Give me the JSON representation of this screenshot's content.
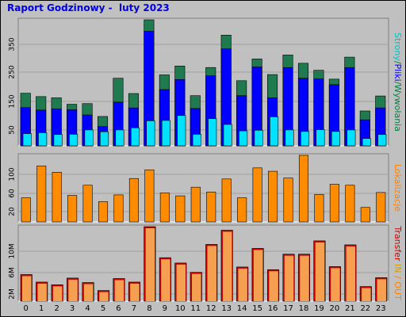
{
  "title": "Raport Godzinowy -  luty 2023",
  "colors": {
    "background": "#c0c0c0",
    "plot_background": "#c0c0c0",
    "hits": "#1f7a4f",
    "files": "#0000ff",
    "pages": "#00e0ff",
    "visits": "#ff8c00",
    "kbytes": "#f5a050",
    "kbytes_edge": "#cc0000",
    "text_hits": "#008040",
    "text_files": "#0000ff",
    "text_pages": "#00c0c0",
    "text_visits": "#ff8000",
    "text_kbytes": "#ff8000",
    "text_transfer": "#cc0000",
    "text_in": "#d4a000",
    "text_out": "#ff8000"
  },
  "chart_data": [
    {
      "type": "bar",
      "panel": "top",
      "categories": [
        "0",
        "1",
        "2",
        "3",
        "4",
        "5",
        "6",
        "7",
        "8",
        "9",
        "10",
        "11",
        "12",
        "13",
        "14",
        "15",
        "16",
        "17",
        "18",
        "19",
        "20",
        "21",
        "22",
        "23"
      ],
      "series": [
        {
          "name": "Strony",
          "values": [
            40,
            43,
            37,
            38,
            52,
            46,
            52,
            59,
            82,
            83,
            99,
            38,
            89,
            70,
            49,
            51,
            95,
            52,
            47,
            53,
            47,
            52,
            24,
            37
          ]
        },
        {
          "name": "Pliki",
          "values": [
            125,
            117,
            121,
            118,
            101,
            63,
            143,
            124,
            375,
            184,
            217,
            122,
            229,
            317,
            164,
            258,
            157,
            256,
            221,
            219,
            200,
            256,
            85,
            124
          ]
        },
        {
          "name": "Wywołania",
          "values": [
            172,
            161,
            157,
            136,
            138,
            96,
            221,
            171,
            412,
            232,
            261,
            164,
            256,
            362,
            213,
            284,
            233,
            297,
            270,
            247,
            218,
            290,
            114,
            163
          ]
        }
      ],
      "yticks": [
        "50",
        "150",
        "250",
        "350"
      ],
      "ylim": [
        0,
        412
      ],
      "side_label": [
        {
          "text": "Strony",
          "color_key": "text_pages"
        },
        {
          "text": "/",
          "color_key": "text_hits"
        },
        {
          "text": "Pliki",
          "color_key": "text_files"
        },
        {
          "text": "/",
          "color_key": "text_hits"
        },
        {
          "text": "Wywołania",
          "color_key": "text_hits"
        }
      ]
    },
    {
      "type": "bar",
      "panel": "middle",
      "categories": [
        "0",
        "1",
        "2",
        "3",
        "4",
        "5",
        "6",
        "7",
        "8",
        "9",
        "10",
        "11",
        "12",
        "13",
        "14",
        "15",
        "16",
        "17",
        "18",
        "19",
        "20",
        "21",
        "22",
        "23"
      ],
      "series": [
        {
          "name": "Lokalizacje",
          "values": [
            50,
            116,
            103,
            55,
            76,
            42,
            56,
            90,
            108,
            60,
            54,
            72,
            62,
            89,
            50,
            112,
            105,
            91,
            138,
            57,
            78,
            76,
            30,
            61
          ]
        }
      ],
      "yticks": [
        "20",
        "60",
        "100"
      ],
      "ylim": [
        0,
        138
      ],
      "side_label": [
        {
          "text": "Lokalizacje",
          "color_key": "text_visits"
        }
      ]
    },
    {
      "type": "bar",
      "panel": "bottom",
      "categories": [
        "0",
        "1",
        "2",
        "3",
        "4",
        "5",
        "6",
        "7",
        "8",
        "9",
        "10",
        "11",
        "12",
        "13",
        "14",
        "15",
        "16",
        "17",
        "18",
        "19",
        "20",
        "21",
        "22",
        "23"
      ],
      "series": [
        {
          "name": "Transfer",
          "values": [
            6.0,
            4.3,
            3.7,
            5.2,
            4.2,
            2.4,
            5.1,
            4.3,
            16.8,
            9.8,
            8.6,
            6.5,
            12.8,
            16.0,
            7.7,
            11.9,
            7.1,
            10.6,
            10.6,
            13.6,
            7.8,
            12.7,
            3.3,
            5.3
          ]
        }
      ],
      "yticks": [
        "2M",
        "6M",
        "10M"
      ],
      "ylim": [
        0,
        16.8
      ],
      "side_label": [
        {
          "text": "Transfer",
          "color_key": "text_transfer"
        },
        {
          "text": " IN",
          "color_key": "text_in"
        },
        {
          "text": " / ",
          "color_key": "text_out"
        },
        {
          "text": "OUT",
          "color_key": "text_out"
        }
      ]
    }
  ]
}
